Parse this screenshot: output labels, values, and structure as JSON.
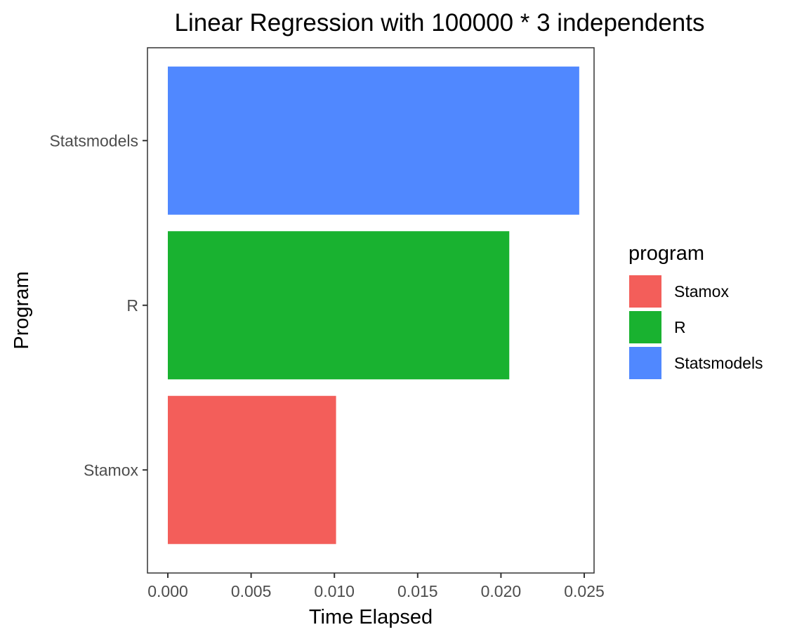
{
  "chart_data": {
    "type": "bar",
    "orientation": "horizontal",
    "title": "Linear Regression with 100000 * 3 independents",
    "xlabel": "Time Elapsed",
    "ylabel": "Program",
    "categories": [
      "Stamox",
      "R",
      "Statsmodels"
    ],
    "values": [
      0.0101,
      0.0205,
      0.0247
    ],
    "colors": [
      "#F35E5A",
      "#19B230",
      "#5088FF"
    ],
    "xlim": [
      0.0,
      0.025
    ],
    "xticks": [
      0.0,
      0.005,
      0.01,
      0.015,
      0.02,
      0.025
    ],
    "xtick_labels": [
      "0.000",
      "0.005",
      "0.010",
      "0.015",
      "0.020",
      "0.025"
    ],
    "legend": {
      "title": "program",
      "position": "right",
      "entries": [
        "Stamox",
        "R",
        "Statsmodels"
      ]
    },
    "grid": false
  }
}
